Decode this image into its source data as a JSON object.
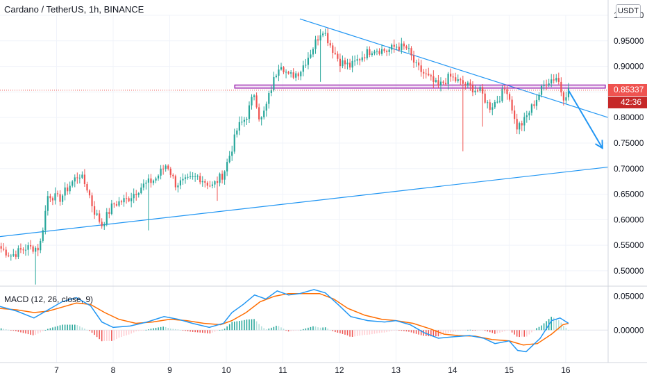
{
  "header": {
    "title": "Cardano / TetherUS, 1h, BINANCE",
    "currency": "USDT"
  },
  "chart_data": {
    "type": "candlestick",
    "title": "Cardano / TetherUS, 1h, BINANCE",
    "ylim": [
      0.47,
      1.0
    ],
    "price_ticks": [
      "1.00000",
      "0.95000",
      "0.90000",
      "0.85000",
      "0.80000",
      "0.75000",
      "0.70000",
      "0.65000",
      "0.60000",
      "0.55000",
      "0.50000"
    ],
    "x_ticks": [
      {
        "label": "7",
        "x": 7.0
      },
      {
        "label": "8",
        "x": 8.0
      },
      {
        "label": "9",
        "x": 9.0
      },
      {
        "label": "10",
        "x": 10.0
      },
      {
        "label": "11",
        "x": 11.0
      },
      {
        "label": "12",
        "x": 12.0
      },
      {
        "label": "13",
        "x": 13.0
      },
      {
        "label": "14",
        "x": 14.0
      },
      {
        "label": "15",
        "x": 15.0
      },
      {
        "label": "16",
        "x": 16.0
      }
    ],
    "xlim": [
      6.0,
      16.75
    ],
    "current_price": "0.85337",
    "countdown": "42:36",
    "anchors": [
      [
        6.0,
        0.545
      ],
      [
        6.2,
        0.53
      ],
      [
        6.45,
        0.545
      ],
      [
        6.7,
        0.545
      ],
      [
        6.85,
        0.65
      ],
      [
        7.05,
        0.64
      ],
      [
        7.25,
        0.67
      ],
      [
        7.4,
        0.69
      ],
      [
        7.55,
        0.66
      ],
      [
        7.65,
        0.62
      ],
      [
        7.8,
        0.59
      ],
      [
        8.0,
        0.63
      ],
      [
        8.25,
        0.64
      ],
      [
        8.5,
        0.665
      ],
      [
        8.75,
        0.68
      ],
      [
        8.95,
        0.71
      ],
      [
        9.1,
        0.67
      ],
      [
        9.3,
        0.675
      ],
      [
        9.5,
        0.685
      ],
      [
        9.75,
        0.665
      ],
      [
        9.95,
        0.69
      ],
      [
        10.1,
        0.74
      ],
      [
        10.2,
        0.78
      ],
      [
        10.35,
        0.8
      ],
      [
        10.5,
        0.85
      ],
      [
        10.6,
        0.79
      ],
      [
        10.7,
        0.82
      ],
      [
        10.8,
        0.86
      ],
      [
        10.95,
        0.91
      ],
      [
        11.1,
        0.88
      ],
      [
        11.3,
        0.89
      ],
      [
        11.5,
        0.93
      ],
      [
        11.7,
        0.975
      ],
      [
        11.85,
        0.94
      ],
      [
        12.0,
        0.91
      ],
      [
        12.2,
        0.9
      ],
      [
        12.4,
        0.92
      ],
      [
        12.6,
        0.935
      ],
      [
        12.85,
        0.93
      ],
      [
        13.0,
        0.94
      ],
      [
        13.2,
        0.935
      ],
      [
        13.35,
        0.9
      ],
      [
        13.55,
        0.88
      ],
      [
        13.75,
        0.86
      ],
      [
        13.95,
        0.88
      ],
      [
        14.1,
        0.87
      ],
      [
        14.3,
        0.86
      ],
      [
        14.5,
        0.85
      ],
      [
        14.65,
        0.82
      ],
      [
        14.8,
        0.835
      ],
      [
        14.95,
        0.86
      ],
      [
        15.05,
        0.82
      ],
      [
        15.12,
        0.78
      ],
      [
        15.25,
        0.79
      ],
      [
        15.45,
        0.83
      ],
      [
        15.65,
        0.87
      ],
      [
        15.85,
        0.88
      ],
      [
        15.95,
        0.84
      ],
      [
        16.05,
        0.853
      ]
    ],
    "macd": {
      "title": "MACD (12, 26, close, 9)",
      "ylim": [
        -0.048,
        0.065
      ],
      "ticks": [
        "0.05000",
        "0.00000"
      ],
      "macd_line": [
        [
          6.0,
          0.035
        ],
        [
          6.3,
          0.028
        ],
        [
          6.6,
          0.018
        ],
        [
          6.85,
          0.03
        ],
        [
          7.1,
          0.042
        ],
        [
          7.35,
          0.048
        ],
        [
          7.6,
          0.036
        ],
        [
          7.8,
          0.012
        ],
        [
          8.0,
          0.004
        ],
        [
          8.3,
          0.006
        ],
        [
          8.6,
          0.012
        ],
        [
          8.9,
          0.02
        ],
        [
          9.15,
          0.016
        ],
        [
          9.4,
          0.01
        ],
        [
          9.7,
          0.004
        ],
        [
          9.95,
          0.01
        ],
        [
          10.1,
          0.026
        ],
        [
          10.3,
          0.038
        ],
        [
          10.5,
          0.052
        ],
        [
          10.7,
          0.046
        ],
        [
          10.9,
          0.058
        ],
        [
          11.1,
          0.052
        ],
        [
          11.3,
          0.054
        ],
        [
          11.55,
          0.06
        ],
        [
          11.75,
          0.055
        ],
        [
          12.0,
          0.036
        ],
        [
          12.2,
          0.02
        ],
        [
          12.5,
          0.014
        ],
        [
          12.8,
          0.012
        ],
        [
          13.0,
          0.014
        ],
        [
          13.25,
          0.008
        ],
        [
          13.5,
          -0.004
        ],
        [
          13.75,
          -0.012
        ],
        [
          14.0,
          -0.01
        ],
        [
          14.3,
          -0.008
        ],
        [
          14.55,
          -0.012
        ],
        [
          14.75,
          -0.02
        ],
        [
          15.0,
          -0.016
        ],
        [
          15.15,
          -0.03
        ],
        [
          15.3,
          -0.032
        ],
        [
          15.55,
          -0.012
        ],
        [
          15.75,
          0.014
        ],
        [
          15.9,
          0.018
        ],
        [
          16.05,
          0.01
        ]
      ],
      "signal_line": [
        [
          6.0,
          0.032
        ],
        [
          6.3,
          0.03
        ],
        [
          6.6,
          0.026
        ],
        [
          6.85,
          0.028
        ],
        [
          7.1,
          0.034
        ],
        [
          7.35,
          0.04
        ],
        [
          7.6,
          0.038
        ],
        [
          7.85,
          0.026
        ],
        [
          8.1,
          0.016
        ],
        [
          8.4,
          0.01
        ],
        [
          8.7,
          0.012
        ],
        [
          9.0,
          0.016
        ],
        [
          9.3,
          0.014
        ],
        [
          9.6,
          0.01
        ],
        [
          9.9,
          0.008
        ],
        [
          10.1,
          0.014
        ],
        [
          10.35,
          0.026
        ],
        [
          10.6,
          0.042
        ],
        [
          10.85,
          0.05
        ],
        [
          11.1,
          0.054
        ],
        [
          11.4,
          0.054
        ],
        [
          11.65,
          0.054
        ],
        [
          11.9,
          0.046
        ],
        [
          12.15,
          0.032
        ],
        [
          12.45,
          0.022
        ],
        [
          12.75,
          0.016
        ],
        [
          13.0,
          0.014
        ],
        [
          13.3,
          0.01
        ],
        [
          13.6,
          0.002
        ],
        [
          13.85,
          -0.006
        ],
        [
          14.1,
          -0.008
        ],
        [
          14.4,
          -0.009
        ],
        [
          14.7,
          -0.014
        ],
        [
          15.0,
          -0.016
        ],
        [
          15.25,
          -0.022
        ],
        [
          15.5,
          -0.02
        ],
        [
          15.75,
          -0.006
        ],
        [
          15.95,
          0.008
        ],
        [
          16.05,
          0.01
        ]
      ]
    }
  },
  "drawings": {
    "channel_top": {
      "from": [
        11.3,
        0.993
      ],
      "to": [
        16.75,
        0.8
      ],
      "color": "#2196f3"
    },
    "channel_bottom": {
      "from": [
        6.0,
        0.567
      ],
      "to": [
        16.75,
        0.703
      ],
      "color": "#2196f3"
    },
    "resistance_zone": {
      "from": 10.15,
      "to": 16.7,
      "top": 0.8635,
      "bottom": 0.8575,
      "color": "#9c27b0"
    },
    "projection_arrow": {
      "from": [
        16.05,
        0.853
      ],
      "to": [
        16.65,
        0.74
      ],
      "color": "#2196f3"
    }
  },
  "colors": {
    "up": "#26a69a",
    "down": "#ef5350",
    "macd": "#2196f3",
    "signal": "#ff6d00",
    "hist_up_strong": "#26a69a",
    "hist_up_weak": "#b2dfdb",
    "hist_down_strong": "#ef5350",
    "hist_down_weak": "#ffcdd2",
    "price_line": "#ef5350",
    "timer_bg": "#c62828"
  }
}
